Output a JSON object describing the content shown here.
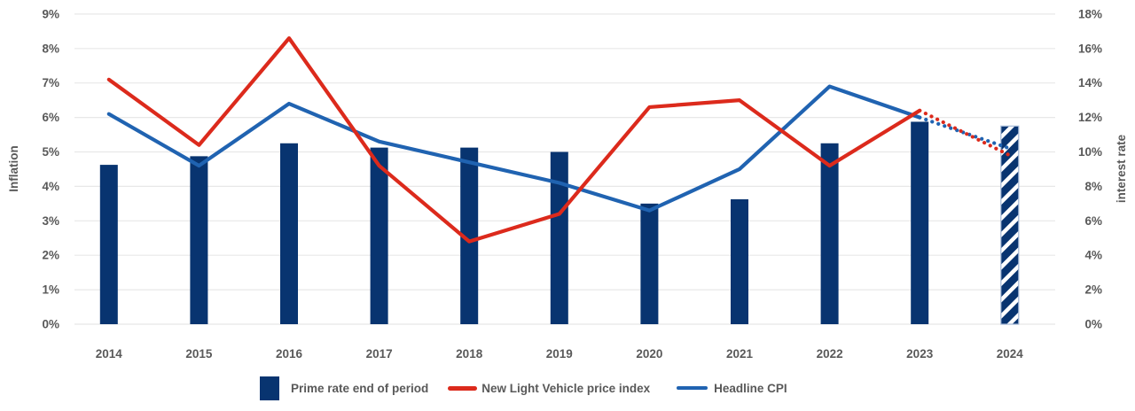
{
  "colors": {
    "axis_text": "#595959",
    "grid": "#e8e8e8",
    "bar_navy": "#083470",
    "line_red": "#dc2a1c",
    "line_blue": "#2063b1",
    "forecast_bar_outline": "#a3b8d6",
    "background": "#ffffff"
  },
  "chart_data": {
    "type": "combo-bar-line",
    "categories": [
      "2014",
      "2015",
      "2016",
      "2017",
      "2018",
      "2019",
      "2020",
      "2021",
      "2022",
      "2023",
      "2024"
    ],
    "series": [
      {
        "name": "Prime rate end of period",
        "type": "bar",
        "axis": "right",
        "color": "#083470",
        "values": [
          9.25,
          9.75,
          10.5,
          10.25,
          10.25,
          10.0,
          7.0,
          7.25,
          10.5,
          11.75,
          11.5
        ],
        "forecast_last_point": true,
        "forecast_style": "hatched"
      },
      {
        "name": "New Light Vehicle price index",
        "type": "line",
        "axis": "left",
        "color": "#dc2a1c",
        "values": [
          7.1,
          5.2,
          8.3,
          4.6,
          2.4,
          3.2,
          6.3,
          6.5,
          4.6,
          6.2,
          4.9
        ],
        "forecast_from_index": 9,
        "forecast_style": "dotted"
      },
      {
        "name": "Headline CPI",
        "type": "line",
        "axis": "left",
        "color": "#2063b1",
        "values": [
          6.1,
          4.6,
          6.4,
          5.3,
          4.7,
          4.1,
          3.3,
          4.5,
          6.9,
          6.0,
          5.1
        ],
        "forecast_from_index": 9,
        "forecast_style": "dotted"
      }
    ],
    "left_axis": {
      "title": "Inflation",
      "min": 0,
      "max": 9,
      "step": 1,
      "tick_suffix": "%"
    },
    "right_axis": {
      "title": "interest rate",
      "min": 0,
      "max": 18,
      "step": 2,
      "tick_suffix": "%"
    },
    "grid": "horizontal",
    "legend_position": "bottom"
  }
}
